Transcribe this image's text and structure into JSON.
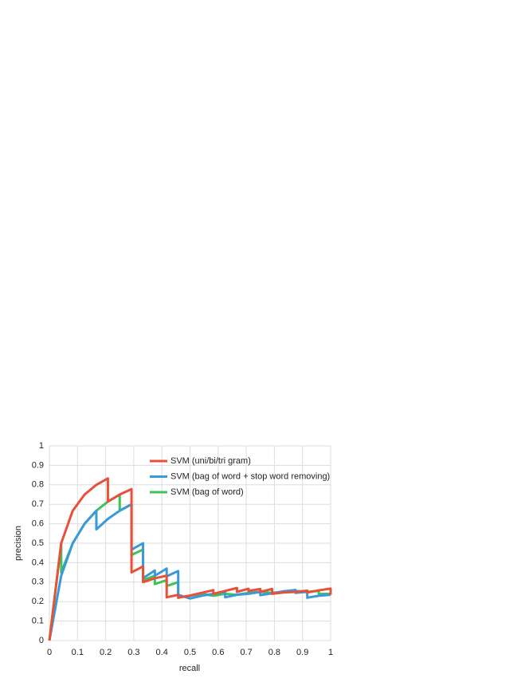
{
  "chart_data": {
    "type": "line",
    "xlabel": "recall",
    "ylabel": "precision",
    "xlim": [
      0,
      1
    ],
    "ylim": [
      0,
      1
    ],
    "xticks": [
      0,
      0.1,
      0.2,
      0.3,
      0.4,
      0.5,
      0.6,
      0.7,
      0.8,
      0.9,
      1
    ],
    "yticks": [
      0,
      0.1,
      0.2,
      0.3,
      0.4,
      0.5,
      0.6,
      0.7,
      0.8,
      0.9,
      1
    ],
    "grid": true,
    "legend": "top-right",
    "series": [
      {
        "name": "SVM (uni/bi/tri gram)",
        "color": "#e8503a",
        "x": [
          0,
          0.042,
          0.083,
          0.125,
          0.167,
          0.208,
          0.208,
          0.25,
          0.292,
          0.292,
          0.333,
          0.333,
          0.375,
          0.417,
          0.417,
          0.458,
          0.458,
          0.5,
          0.542,
          0.583,
          0.583,
          0.625,
          0.667,
          0.667,
          0.708,
          0.708,
          0.75,
          0.75,
          0.792,
          0.792,
          0.833,
          0.875,
          0.917,
          0.917,
          0.958,
          1,
          1
        ],
        "values": [
          0,
          0.5,
          0.667,
          0.75,
          0.8,
          0.833,
          0.714,
          0.75,
          0.778,
          0.35,
          0.381,
          0.3,
          0.32,
          0.333,
          0.222,
          0.235,
          0.22,
          0.231,
          0.245,
          0.259,
          0.24,
          0.255,
          0.27,
          0.25,
          0.266,
          0.255,
          0.265,
          0.25,
          0.265,
          0.24,
          0.247,
          0.25,
          0.256,
          0.247,
          0.258,
          0.267,
          0.235
        ]
      },
      {
        "name": "SVM (bag of word + stop word removing)",
        "color": "#3a9ad9",
        "x": [
          0,
          0.042,
          0.083,
          0.125,
          0.167,
          0.167,
          0.208,
          0.25,
          0.292,
          0.292,
          0.333,
          0.333,
          0.375,
          0.375,
          0.417,
          0.417,
          0.458,
          0.458,
          0.5,
          0.542,
          0.583,
          0.625,
          0.625,
          0.667,
          0.708,
          0.75,
          0.75,
          0.792,
          0.833,
          0.875,
          0.875,
          0.917,
          0.917,
          0.958,
          1
        ],
        "values": [
          0,
          0.333,
          0.5,
          0.6,
          0.667,
          0.571,
          0.625,
          0.667,
          0.7,
          0.467,
          0.5,
          0.32,
          0.36,
          0.333,
          0.37,
          0.33,
          0.357,
          0.235,
          0.216,
          0.23,
          0.24,
          0.25,
          0.222,
          0.235,
          0.24,
          0.25,
          0.233,
          0.243,
          0.253,
          0.26,
          0.245,
          0.25,
          0.22,
          0.23,
          0.235
        ]
      },
      {
        "name": "SVM (bag of word)",
        "color": "#3cc35a",
        "x": [
          0,
          0.042,
          0.042,
          0.083,
          0.125,
          0.167,
          0.208,
          0.25,
          0.25,
          0.292,
          0.292,
          0.333,
          0.333,
          0.375,
          0.375,
          0.417,
          0.417,
          0.458,
          0.458,
          0.5,
          0.542,
          0.583,
          0.625,
          0.667,
          0.708,
          0.75,
          0.792,
          0.833,
          0.875,
          0.917,
          0.958,
          0.958,
          1
        ],
        "values": [
          0,
          0.5,
          0.35,
          0.5,
          0.6,
          0.667,
          0.714,
          0.75,
          0.667,
          0.7,
          0.44,
          0.467,
          0.31,
          0.333,
          0.29,
          0.31,
          0.28,
          0.3,
          0.22,
          0.23,
          0.24,
          0.23,
          0.24,
          0.235,
          0.245,
          0.25,
          0.245,
          0.25,
          0.255,
          0.25,
          0.255,
          0.24,
          0.24
        ]
      }
    ]
  }
}
